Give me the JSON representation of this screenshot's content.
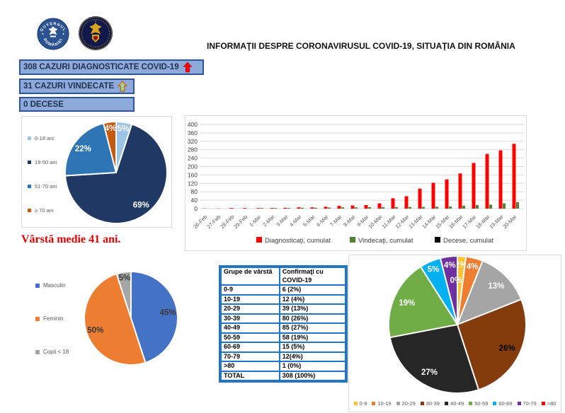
{
  "page": {
    "title": "INFORMAŢII DESPRE CORONAVIRUSUL COVID-19, SITUAŢIA DIN ROMÂNIA"
  },
  "logos": {
    "gov": {
      "line1": "GUVERNUL",
      "line2": "ROMÂNIEI"
    },
    "mai": {
      "label": "M.A.I."
    }
  },
  "status_bars": [
    {
      "label": "308 CAZURI DIAGNOSTICATE COVID-19",
      "arrow": "up-red"
    },
    {
      "label": "31 CAZURI VINDECATE",
      "arrow": "up-green"
    },
    {
      "label": "0 DECESE",
      "arrow": "none"
    }
  ],
  "avg_age_note": "Vârstă medie 41 ani.",
  "status_colors": {
    "fill": "#8EAADB",
    "border": "#2F5597",
    "arrow_red": "#FF0000",
    "arrow_green_fill": "#A9D18E",
    "arrow_green_stroke": "#C55A11"
  },
  "chart_data": [
    {
      "id": "age-group-pie",
      "type": "pie",
      "labels": [
        "0-18 ani",
        "19-50 ani",
        "51-70 ani",
        "≥ 70 ani"
      ],
      "values": [
        5,
        69,
        22,
        4
      ],
      "value_labels": [
        "5%",
        "69%",
        "22%",
        "4%"
      ],
      "colors": [
        "#9DC3E6",
        "#1F3864",
        "#2E75B6",
        "#C55A11"
      ],
      "label_color": "#FFFFFF",
      "legend_position": "left"
    },
    {
      "id": "cumulative-evolution",
      "type": "bar",
      "categories": [
        "26-Feb",
        "27-Feb",
        "28-Feb",
        "29-Feb",
        "1-Mar",
        "2-Mar",
        "3-Mar",
        "4-Mar",
        "5-Mar",
        "6-Mar",
        "7-Mar",
        "8-Mar",
        "9-Mar",
        "10-Mar",
        "11-Mar",
        "12-Mar",
        "13-Mar",
        "14-Mar",
        "15-Mar",
        "16-Mar",
        "17-Mar",
        "18-Mar",
        "19-Mar",
        "20-Mar"
      ],
      "series": [
        {
          "name": "Diagnosticaţi, cumulat",
          "color": "#FF0000",
          "values": [
            1,
            1,
            3,
            3,
            3,
            3,
            4,
            6,
            6,
            9,
            13,
            15,
            17,
            25,
            49,
            59,
            95,
            123,
            139,
            167,
            217,
            260,
            277,
            308
          ]
        },
        {
          "name": "Vindecaţi, cumulat",
          "color": "#548235",
          "values": [
            0,
            0,
            0,
            0,
            3,
            3,
            3,
            4,
            4,
            5,
            6,
            6,
            7,
            7,
            7,
            8,
            8,
            9,
            10,
            14,
            17,
            19,
            25,
            31
          ]
        },
        {
          "name": "Decese, cumulat",
          "color": "#000000",
          "values": [
            0,
            0,
            0,
            0,
            0,
            0,
            0,
            0,
            0,
            0,
            0,
            0,
            0,
            0,
            0,
            0,
            0,
            0,
            0,
            0,
            0,
            0,
            0,
            0
          ]
        }
      ],
      "ylim": [
        0,
        400
      ],
      "ytick_step": 40,
      "grid": true,
      "legend_position": "bottom"
    },
    {
      "id": "gender-pie",
      "type": "pie",
      "labels": [
        "Masculin",
        "Feminin",
        "Copii < 18"
      ],
      "values": [
        45,
        50,
        5
      ],
      "value_labels": [
        "45%",
        "50%",
        "5%"
      ],
      "colors": [
        "#4472C4",
        "#ED7D31",
        "#A5A5A5"
      ],
      "label_color": "#3A3A3A",
      "legend_position": "left"
    },
    {
      "id": "age-decade-pie",
      "type": "pie",
      "labels": [
        "0-9",
        "10-19",
        "20-29",
        "30-39",
        "40-49",
        "50-59",
        "60-69",
        "70-79",
        ">80"
      ],
      "values": [
        2,
        4,
        13,
        26,
        27,
        19,
        5,
        4,
        0
      ],
      "value_labels": [
        "2%",
        "4%",
        "13%",
        "26%",
        "27%",
        "19%",
        "5%",
        "4%",
        "0%"
      ],
      "colors": [
        "#FFC234",
        "#ED7D31",
        "#A5A5A5",
        "#843C0C",
        "#262626",
        "#70AD47",
        "#00B0F0",
        "#7030A0",
        "#FF0000"
      ],
      "label_colors": [
        "#FFFFFF",
        "#FFFFFF",
        "#FFFFFF",
        "#000000",
        "#FFFFFF",
        "#FFFFFF",
        "#FFFFFF",
        "#FFFFFF",
        "#FFFFFF"
      ],
      "legend_position": "bottom"
    }
  ],
  "table": {
    "headers": [
      "Grupe de vârstă",
      "Confirmaţi cu COVID-19"
    ],
    "rows": [
      [
        "0-9",
        "6 (2%)"
      ],
      [
        "10-19",
        "12 (4%)"
      ],
      [
        "20-29",
        "39 (13%)"
      ],
      [
        "30-39",
        "80 (26%)"
      ],
      [
        "40-49",
        "85 (27%)"
      ],
      [
        "50-59",
        "58 (19%)"
      ],
      [
        "60-69",
        "15 (5%)"
      ],
      [
        "70-79",
        "12(4%)"
      ],
      [
        ">80",
        "1 (0%)"
      ],
      [
        "TOTAL",
        "308 (100%)"
      ]
    ]
  }
}
